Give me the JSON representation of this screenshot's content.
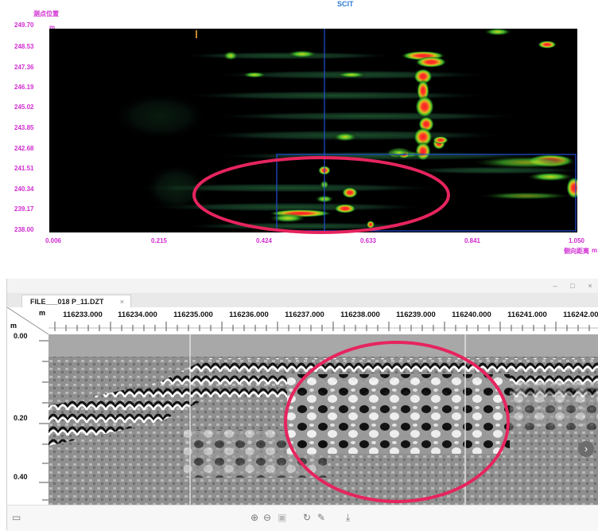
{
  "top_panel": {
    "title": "SCIT",
    "y_axis_title": "测点位置",
    "y_unit": "m",
    "y_ticks": [
      "249.70",
      "248.53",
      "247.36",
      "246.19",
      "245.02",
      "243.85",
      "242.68",
      "241.51",
      "240.34",
      "239.17",
      "238.00"
    ],
    "x_ticks": [
      "0.006",
      "0.215",
      "0.424",
      "0.633",
      "0.841",
      "1.050"
    ],
    "x_axis_title": "侧向距离",
    "x_unit": "m",
    "colors": {
      "axis_text": "#d12dd1",
      "title": "#2e7bd3",
      "highlight_circle": "#e6245e",
      "selection_box": "#1f4fd6"
    }
  },
  "viewer": {
    "window_controls": {
      "minimize": "–",
      "maximize": "□",
      "close": "×"
    },
    "tab": {
      "label": "FILE___018 P_11.DZT",
      "close": "×"
    },
    "ruler_corner": {
      "x_unit": "m",
      "y_unit": "m"
    },
    "x_ticks": [
      "116233.000",
      "116234.000",
      "116235.000",
      "116236.000",
      "116237.000",
      "116238.000",
      "116239.000",
      "116240.000",
      "116241.000",
      "116242.000"
    ],
    "y_ticks": [
      "0.00",
      "0.20",
      "0.40"
    ],
    "nav_arrow_icon": "chevron-right-icon",
    "toolbar": {
      "left_icon": "panel-icon",
      "zoom_in_icon": "zoom-in-icon",
      "zoom_out_icon": "zoom-out-icon",
      "fit_icon": "fit-icon",
      "rotate_icon": "rotate-icon",
      "edit_icon": "pencil-icon",
      "download_icon": "download-icon"
    }
  }
}
